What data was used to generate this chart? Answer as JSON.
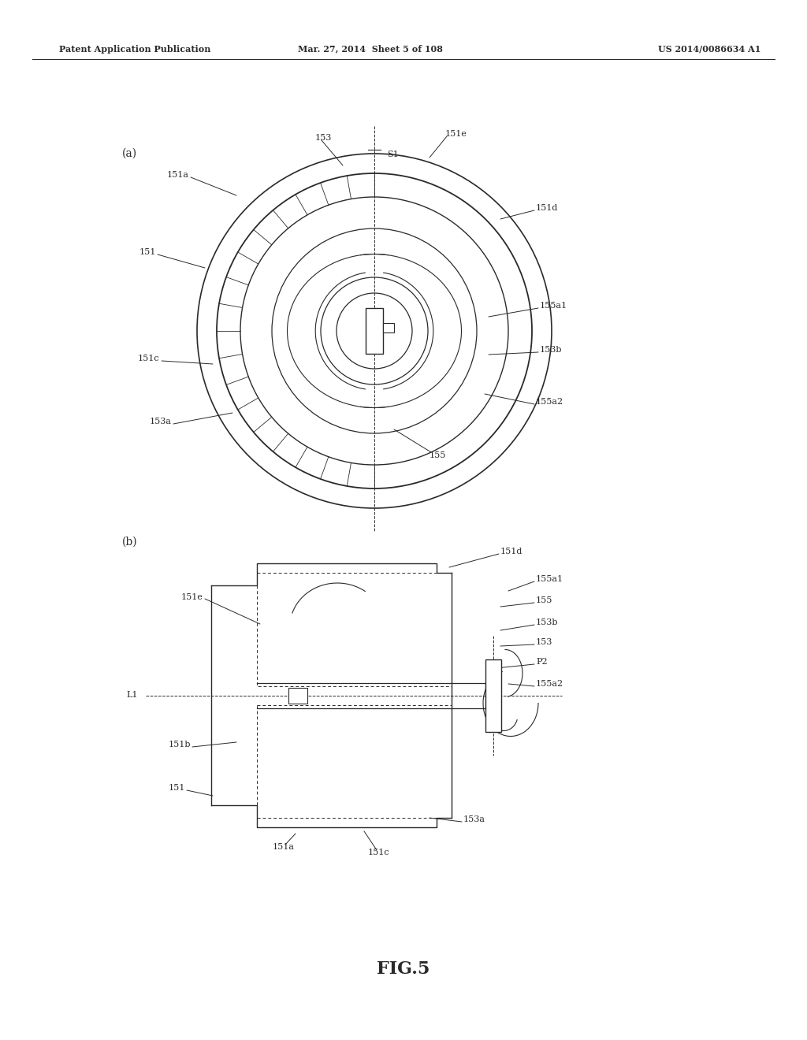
{
  "bg_color": "#ffffff",
  "line_color": "#2a2a2a",
  "header_left": "Patent Application Publication",
  "header_center": "Mar. 27, 2014  Sheet 5 of 108",
  "header_right": "US 2014/0086634 A1",
  "figure_label": "FIG.5",
  "panel_a_label": "(a)",
  "panel_b_label": "(b)"
}
